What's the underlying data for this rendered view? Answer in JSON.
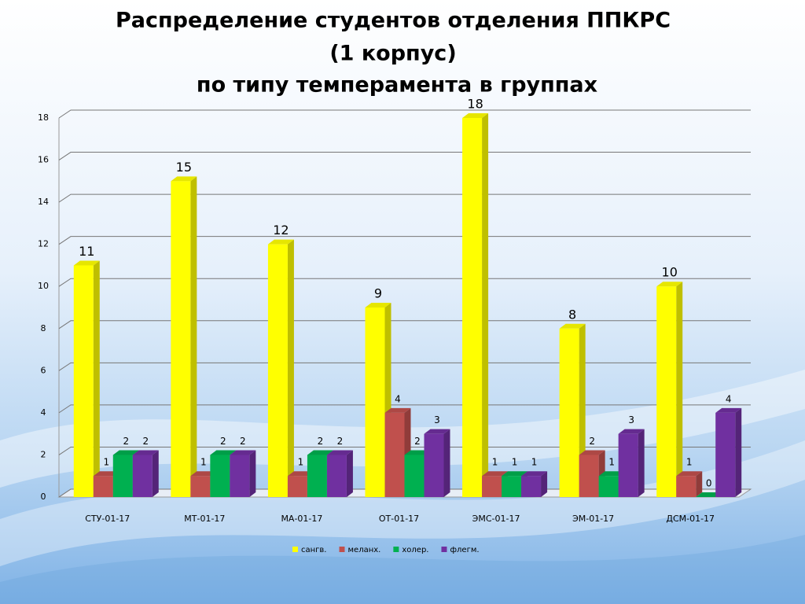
{
  "chart_data": {
    "type": "bar3d",
    "title": [
      "Распределение студентов отделения ППКРС",
      "(1 корпус)",
      "по типу темперамента в группах"
    ],
    "categories": [
      "СТУ-01-17",
      "МТ-01-17",
      "МА-01-17",
      "ОТ-01-17",
      "ЭМС-01-17",
      "ЭМ-01-17",
      "ДСМ-01-17"
    ],
    "series": [
      {
        "name": "сангв.",
        "color": "#ffff00",
        "values": [
          11,
          15,
          12,
          9,
          18,
          8,
          10
        ]
      },
      {
        "name": "меланх.",
        "color": "#c0504d",
        "values": [
          1,
          1,
          1,
          4,
          1,
          2,
          1
        ]
      },
      {
        "name": "холер.",
        "color": "#00b050",
        "values": [
          2,
          2,
          2,
          2,
          1,
          1,
          0
        ]
      },
      {
        "name": "флегм.",
        "color": "#7030a0",
        "values": [
          2,
          2,
          2,
          3,
          1,
          3,
          4
        ]
      }
    ],
    "ylim": [
      0,
      18
    ],
    "yticks": [
      0,
      2,
      4,
      6,
      8,
      10,
      12,
      14,
      16,
      18
    ],
    "grid": true,
    "legend": "bottom"
  }
}
